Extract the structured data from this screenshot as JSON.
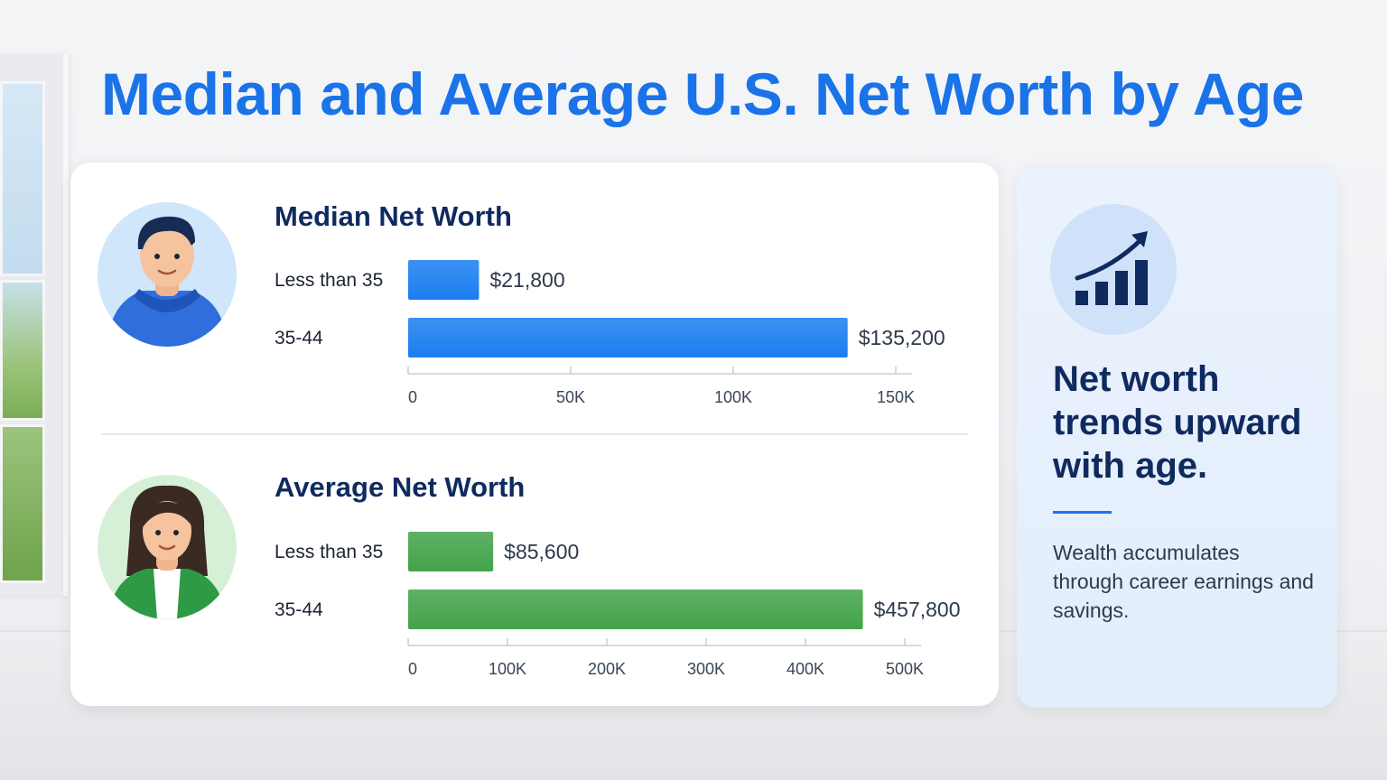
{
  "title": "Median and Average U.S. Net Worth by Age",
  "chart_data": [
    {
      "type": "bar",
      "orientation": "horizontal",
      "title": "Median Net Worth",
      "categories": [
        "Less than 35",
        "35-44"
      ],
      "values": [
        21800,
        135200
      ],
      "value_labels": [
        "$21,800",
        "$135,200"
      ],
      "xlim": [
        0,
        150000
      ],
      "ticks": [
        0,
        50000,
        100000,
        150000
      ],
      "tick_labels": [
        "0",
        "50K",
        "100K",
        "150K"
      ],
      "color": "#1a7ef0"
    },
    {
      "type": "bar",
      "orientation": "horizontal",
      "title": "Average Net Worth",
      "categories": [
        "Less than 35",
        "35-44"
      ],
      "values": [
        85600,
        457800
      ],
      "value_labels": [
        "$85,600",
        "$457,800"
      ],
      "xlim": [
        0,
        500000
      ],
      "ticks": [
        0,
        100000,
        200000,
        300000,
        400000,
        500000
      ],
      "tick_labels": [
        "0",
        "100K",
        "200K",
        "300K",
        "400K",
        "500K"
      ],
      "color": "#43a34a"
    }
  ],
  "side": {
    "headline": "Net worth trends upward with age.",
    "body": "Wealth accumulates through career earnings and savings.",
    "icon": "bar-chart-trend-icon",
    "accent_color": "#1a73e8"
  },
  "avatars": [
    "young-man-hoodie-icon",
    "woman-blazer-icon"
  ]
}
